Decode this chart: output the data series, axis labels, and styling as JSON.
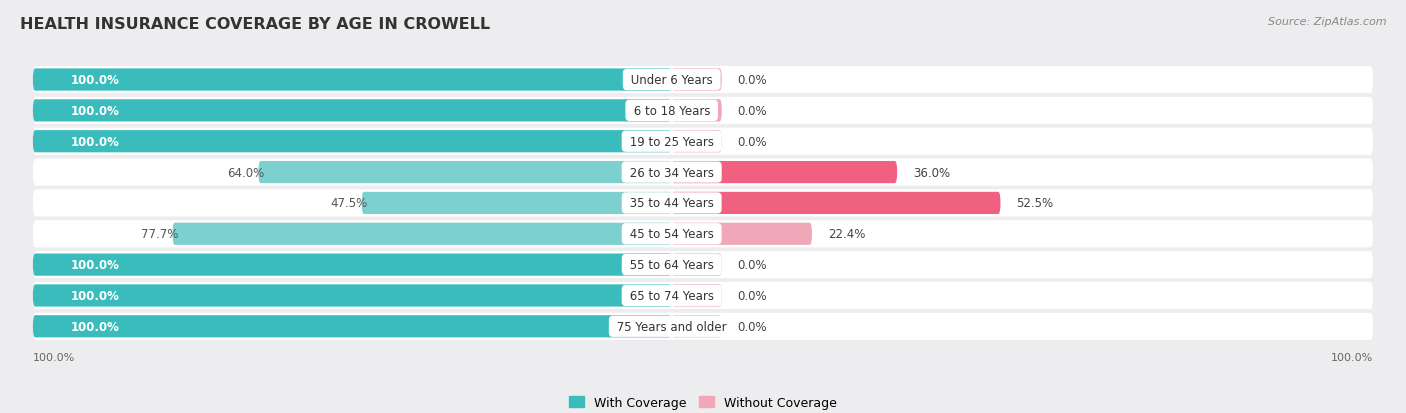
{
  "title": "HEALTH INSURANCE COVERAGE BY AGE IN CROWELL",
  "source": "Source: ZipAtlas.com",
  "categories": [
    "Under 6 Years",
    "6 to 18 Years",
    "19 to 25 Years",
    "26 to 34 Years",
    "35 to 44 Years",
    "45 to 54 Years",
    "55 to 64 Years",
    "65 to 74 Years",
    "75 Years and older"
  ],
  "with_coverage": [
    100.0,
    100.0,
    100.0,
    64.0,
    47.5,
    77.7,
    100.0,
    100.0,
    100.0
  ],
  "without_coverage": [
    0.0,
    0.0,
    0.0,
    36.0,
    52.5,
    22.4,
    0.0,
    0.0,
    0.0
  ],
  "color_with_full": "#3bbcbc",
  "color_with_partial": "#7dd0d0",
  "color_without_large": "#f06080",
  "color_without_small": "#f0a8b8",
  "bg_color": "#ededef",
  "row_bg": "#f7f7f9"
}
